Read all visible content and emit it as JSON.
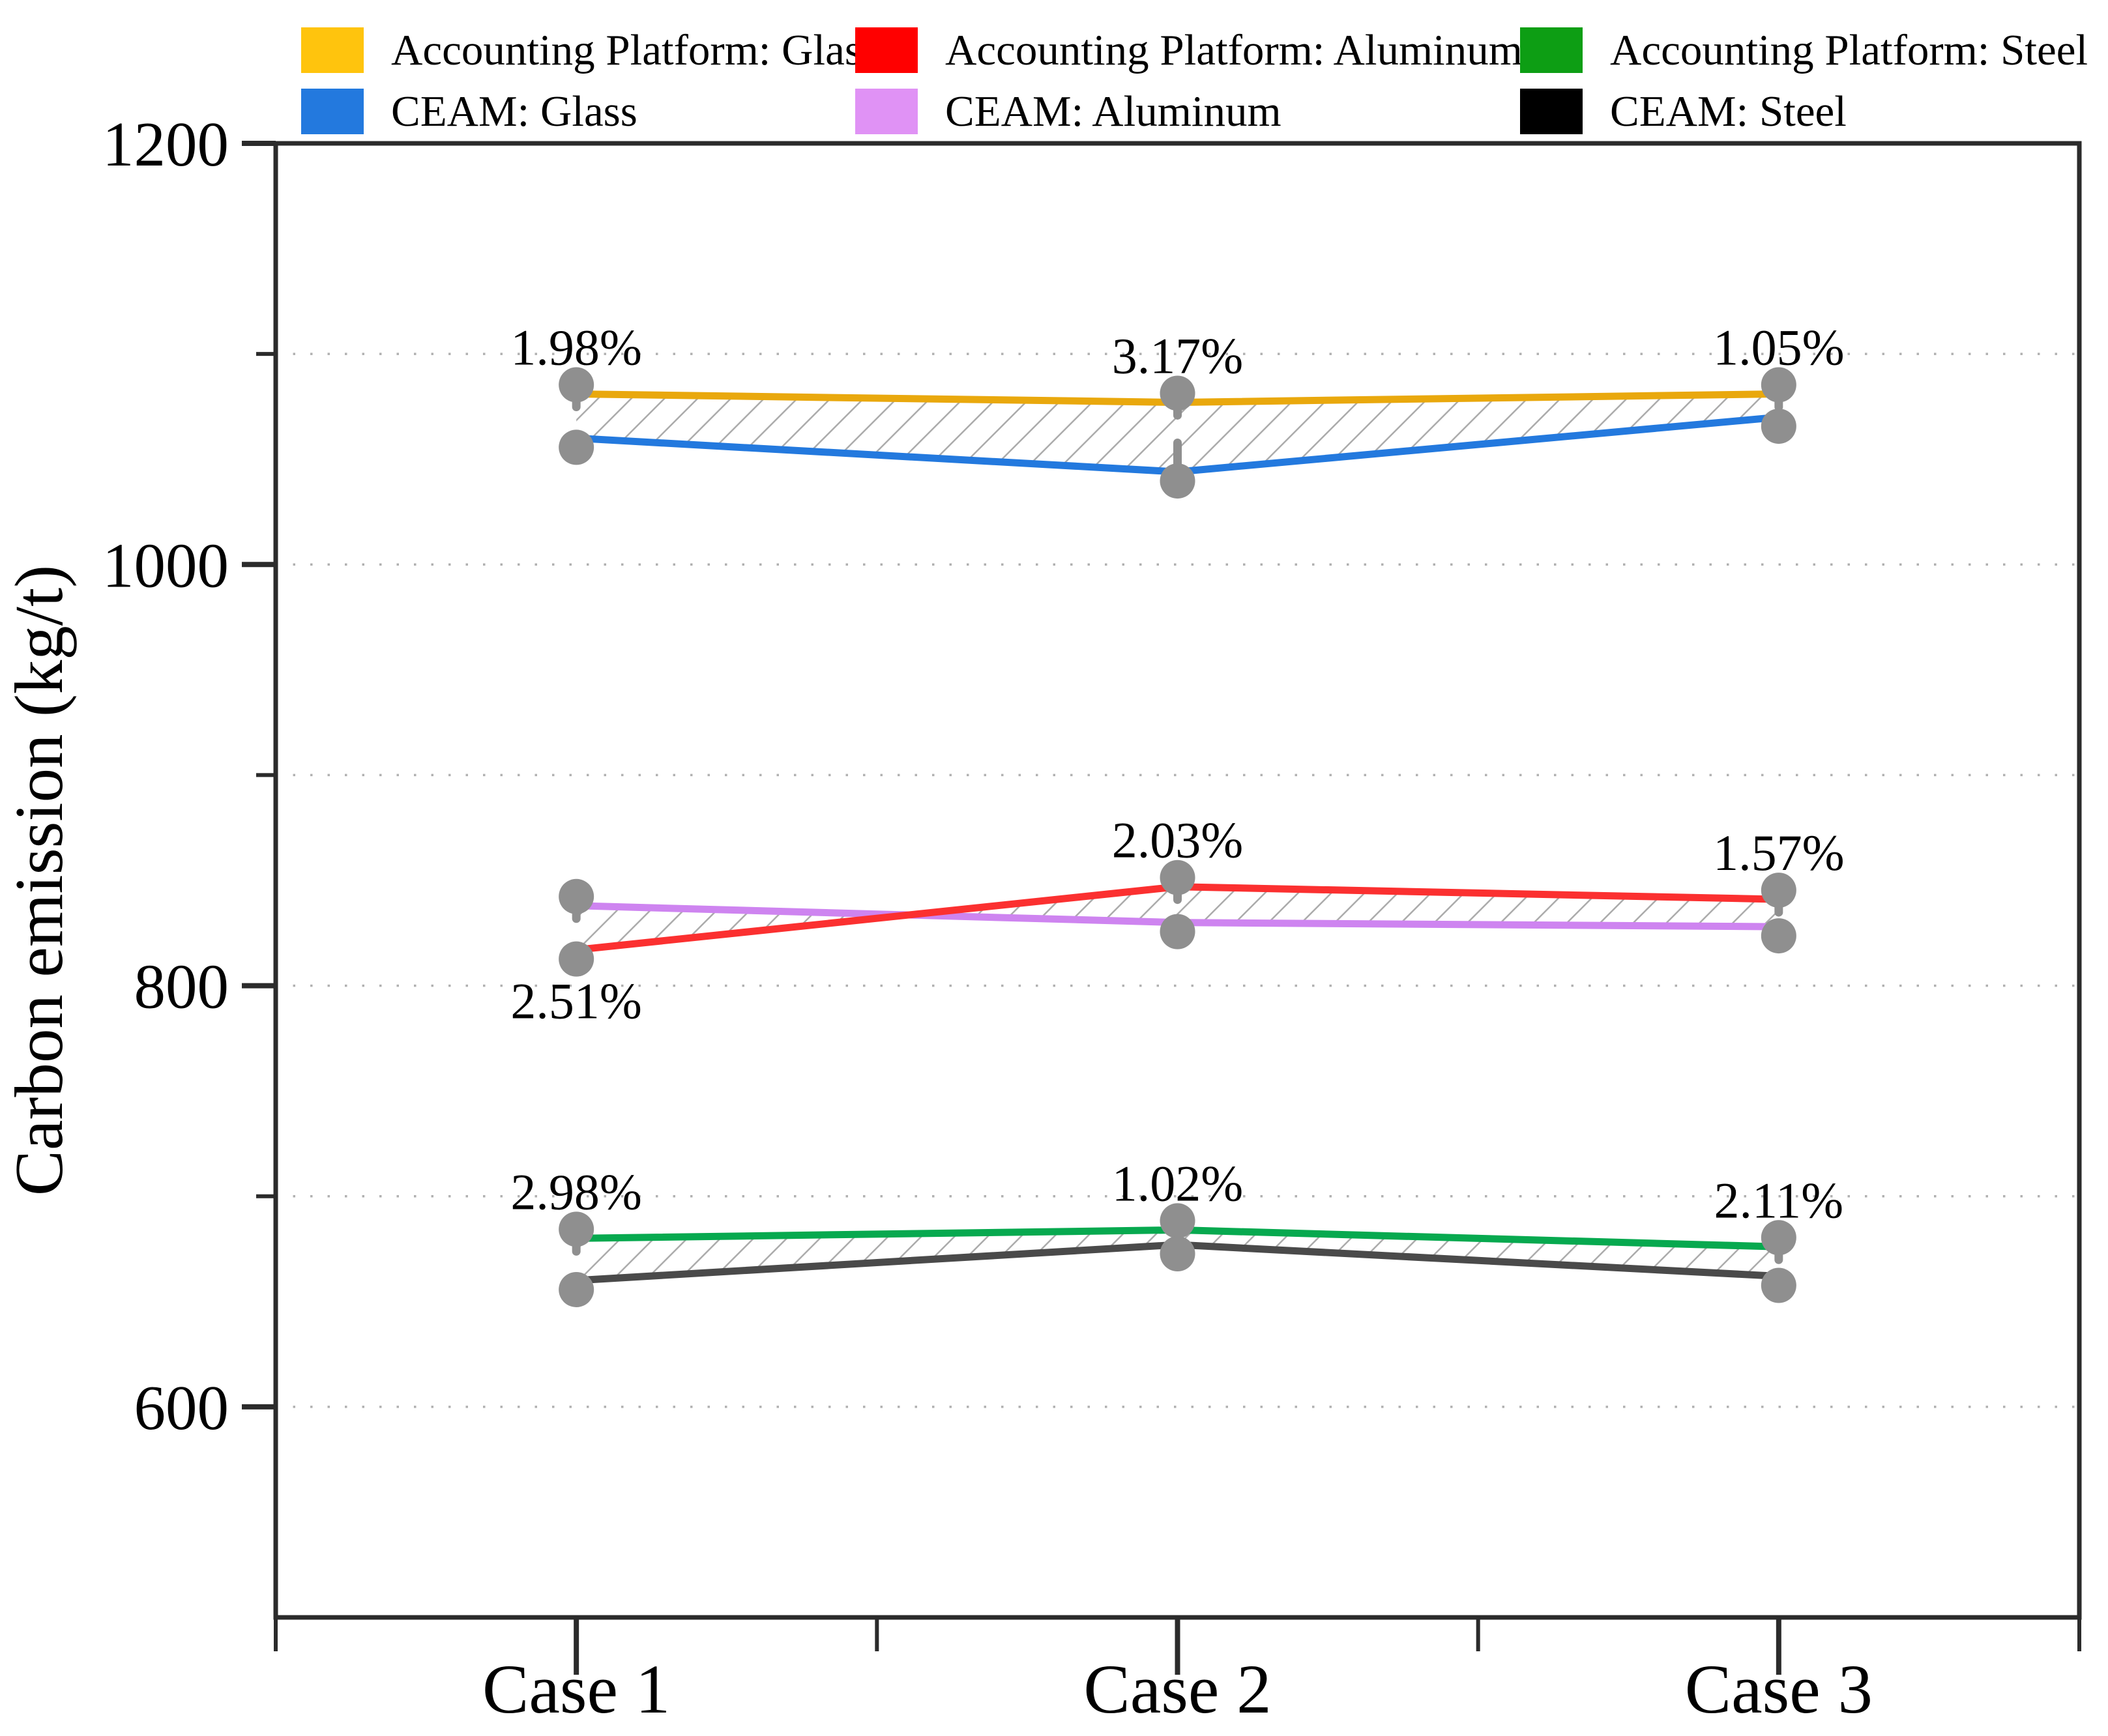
{
  "figure": {
    "ylabel": "Carbon emission (kg/t)"
  },
  "legend": {
    "items": [
      {
        "label": "Accounting Platform: Glass",
        "color": "#FFC40D"
      },
      {
        "label": "Accounting Platform: Aluminum",
        "color": "#FF0000"
      },
      {
        "label": "Accounting Platform: Steel",
        "color": "#0D9E14"
      },
      {
        "label": "CEAM: Glass",
        "color": "#2379DE"
      },
      {
        "label": "CEAM: Aluminum",
        "color": "#E092F5"
      },
      {
        "label": "CEAM: Steel",
        "color": "#000000"
      }
    ]
  },
  "chart_data": {
    "type": "line",
    "title": "",
    "xlabel": "",
    "ylabel": "Carbon emission (kg/t)",
    "categories": [
      "Case 1",
      "Case 2",
      "Case 3"
    ],
    "ylim": [
      500,
      1200
    ],
    "yticks_major": [
      600,
      800,
      1000,
      1200
    ],
    "yticks_minor": [
      700,
      900,
      1100
    ],
    "gridlines_y": [
      600,
      700,
      800,
      900,
      1000,
      1100
    ],
    "grid_style": "dotted horizontal",
    "legend_position": "top",
    "marker_color": "#8F8F8F",
    "hatch_color": "#ABABAB",
    "groups": [
      {
        "material": "Glass",
        "series_ap": {
          "name": "Accounting Platform: Glass",
          "values": [
            1081,
            1077,
            1081
          ],
          "color": "#E9A80D"
        },
        "series_ceam": {
          "name": "CEAM: Glass",
          "values": [
            1060,
            1044,
            1070
          ],
          "color": "#2379DE"
        },
        "gap_labels": [
          "1.98%",
          "3.17%",
          "1.05%"
        ],
        "gap_label_side": [
          "above",
          "above",
          "above"
        ]
      },
      {
        "material": "Aluminum",
        "series_ap": {
          "name": "Accounting Platform: Aluminum",
          "values": [
            817,
            847,
            841
          ],
          "color": "#FB3030"
        },
        "series_ceam": {
          "name": "CEAM: Aluminum",
          "values": [
            838,
            830,
            828
          ],
          "color": "#CE84F0"
        },
        "gap_labels": [
          "2.51%",
          "2.03%",
          "1.57%"
        ],
        "gap_label_side": [
          "below",
          "above",
          "above"
        ]
      },
      {
        "material": "Steel",
        "series_ap": {
          "name": "Accounting Platform: Steel",
          "values": [
            680,
            684,
            676
          ],
          "color": "#07A94F"
        },
        "series_ceam": {
          "name": "CEAM: Steel",
          "values": [
            660,
            677,
            662
          ],
          "color": "#4A4A4A"
        },
        "gap_labels": [
          "2.98%",
          "1.02%",
          "2.11%"
        ],
        "gap_label_side": [
          "above",
          "above",
          "above"
        ]
      }
    ]
  }
}
